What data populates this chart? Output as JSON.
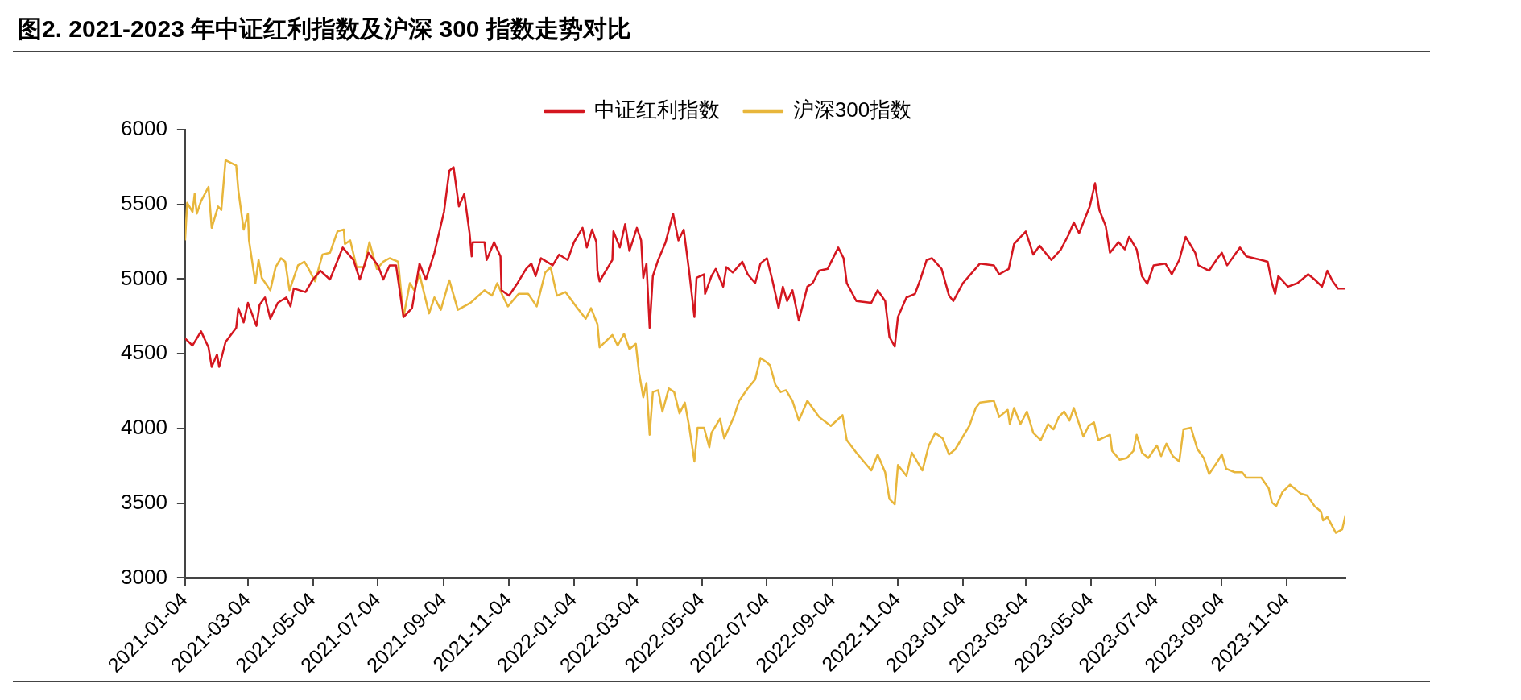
{
  "chart_data": {
    "type": "line",
    "title": "图2. 2021-2023 年中证红利指数及沪深 300 指数走势对比",
    "xlim": [
      "2021-01-04",
      "2023-12-29"
    ],
    "xticks": [
      "2021-01-04",
      "2021-03-04",
      "2021-05-04",
      "2021-07-04",
      "2021-09-04",
      "2021-11-04",
      "2022-01-04",
      "2022-03-04",
      "2022-05-04",
      "2022-07-04",
      "2022-09-04",
      "2022-11-04",
      "2023-01-04",
      "2023-03-04",
      "2023-05-04",
      "2023-07-04",
      "2023-09-04",
      "2023-11-04"
    ],
    "ylim": [
      3000,
      6000
    ],
    "yticks": [
      3000,
      3500,
      4000,
      4500,
      5000,
      5500,
      6000
    ],
    "grid": false,
    "legend": "top",
    "marker": "none",
    "line_style": "solid",
    "series": [
      {
        "name": "中证红利指数",
        "color": "#d4161f",
        "x": [
          "2021-01-04",
          "2021-01-11",
          "2021-01-19",
          "2021-01-26",
          "2021-01-29",
          "2021-02-03",
          "2021-02-05",
          "2021-02-11",
          "2021-02-21",
          "2021-02-23",
          "2021-02-28",
          "2021-03-04",
          "2021-03-12",
          "2021-03-15",
          "2021-03-20",
          "2021-03-25",
          "2021-04-01",
          "2021-04-09",
          "2021-04-13",
          "2021-04-16",
          "2021-04-27",
          "2021-05-04",
          "2021-05-11",
          "2021-05-20",
          "2021-06-01",
          "2021-06-11",
          "2021-06-17",
          "2021-06-25",
          "2021-07-04",
          "2021-07-09",
          "2021-07-15",
          "2021-07-21",
          "2021-07-28",
          "2021-08-05",
          "2021-08-12",
          "2021-08-18",
          "2021-08-26",
          "2021-09-04",
          "2021-09-09",
          "2021-09-13",
          "2021-09-18",
          "2021-09-23",
          "2021-09-28",
          "2021-09-30",
          "2021-10-01",
          "2021-10-12",
          "2021-10-14",
          "2021-10-21",
          "2021-10-27",
          "2021-10-28",
          "2021-11-04",
          "2021-11-12",
          "2021-11-20",
          "2021-11-25",
          "2021-11-29",
          "2021-12-04",
          "2021-12-15",
          "2021-12-21",
          "2021-12-29",
          "2022-01-04",
          "2022-01-12",
          "2022-01-16",
          "2022-01-21",
          "2022-01-25",
          "2022-01-26",
          "2022-01-28",
          "2022-02-09",
          "2022-02-10",
          "2022-02-16",
          "2022-02-21",
          "2022-02-25",
          "2022-03-04",
          "2022-03-08",
          "2022-03-10",
          "2022-03-13",
          "2022-03-16",
          "2022-03-19",
          "2022-03-24",
          "2022-03-31",
          "2022-04-07",
          "2022-04-12",
          "2022-04-17",
          "2022-04-22",
          "2022-04-27",
          "2022-04-29",
          "2022-05-06",
          "2022-05-07",
          "2022-05-13",
          "2022-05-17",
          "2022-05-24",
          "2022-05-27",
          "2022-06-02",
          "2022-06-11",
          "2022-06-16",
          "2022-06-23",
          "2022-06-28",
          "2022-07-04",
          "2022-07-09",
          "2022-07-15",
          "2022-07-19",
          "2022-07-23",
          "2022-07-28",
          "2022-08-03",
          "2022-08-11",
          "2022-08-16",
          "2022-08-22",
          "2022-08-30",
          "2022-09-09",
          "2022-09-14",
          "2022-09-17",
          "2022-09-26",
          "2022-10-10",
          "2022-10-16",
          "2022-10-23",
          "2022-10-27",
          "2022-11-01",
          "2022-11-04",
          "2022-11-12",
          "2022-11-20",
          "2022-11-25",
          "2022-12-01",
          "2022-12-06",
          "2022-12-15",
          "2022-12-22",
          "2022-12-26",
          "2023-01-04",
          "2023-01-20",
          "2023-02-02",
          "2023-02-07",
          "2023-02-16",
          "2023-02-21",
          "2023-03-04",
          "2023-03-11",
          "2023-03-17",
          "2023-03-28",
          "2023-04-06",
          "2023-04-13",
          "2023-04-18",
          "2023-04-23",
          "2023-05-03",
          "2023-05-08",
          "2023-05-12",
          "2023-05-18",
          "2023-05-22",
          "2023-05-30",
          "2023-06-05",
          "2023-06-09",
          "2023-06-16",
          "2023-06-21",
          "2023-06-26",
          "2023-07-02",
          "2023-07-13",
          "2023-07-19",
          "2023-07-26",
          "2023-08-01",
          "2023-08-10",
          "2023-08-13",
          "2023-08-23",
          "2023-08-31",
          "2023-09-04",
          "2023-09-09",
          "2023-09-21",
          "2023-09-27",
          "2023-10-11",
          "2023-10-17",
          "2023-10-21",
          "2023-10-24",
          "2023-10-27",
          "2023-11-05",
          "2023-11-14",
          "2023-11-24",
          "2023-11-30",
          "2023-12-07",
          "2023-12-12",
          "2023-12-17",
          "2023-12-22",
          "2023-12-29"
        ],
        "values": [
          4603,
          4555,
          4650,
          4543,
          4412,
          4495,
          4412,
          4579,
          4674,
          4805,
          4710,
          4841,
          4686,
          4829,
          4877,
          4734,
          4841,
          4877,
          4817,
          4937,
          4913,
          4997,
          5056,
          4997,
          5211,
          5128,
          4997,
          5176,
          5092,
          4997,
          5092,
          5092,
          4746,
          4805,
          5104,
          4997,
          5176,
          5450,
          5725,
          5749,
          5486,
          5570,
          5307,
          5152,
          5247,
          5247,
          5128,
          5247,
          5152,
          4925,
          4889,
          4973,
          5068,
          5104,
          5020,
          5140,
          5092,
          5164,
          5128,
          5247,
          5343,
          5211,
          5331,
          5247,
          5056,
          4985,
          5128,
          5319,
          5211,
          5367,
          5188,
          5343,
          5259,
          5008,
          5104,
          4674,
          5020,
          5128,
          5247,
          5438,
          5259,
          5331,
          5056,
          4746,
          5008,
          5032,
          4901,
          5020,
          5068,
          4949,
          5080,
          5044,
          5116,
          5032,
          4973,
          5104,
          5140,
          4997,
          4805,
          4949,
          4853,
          4925,
          4722,
          4949,
          4973,
          5056,
          5068,
          5211,
          5140,
          4973,
          4853,
          4841,
          4925,
          4853,
          4614,
          4548,
          4746,
          4877,
          4901,
          4997,
          5128,
          5140,
          5068,
          4889,
          4853,
          4973,
          5104,
          5092,
          5032,
          5068,
          5235,
          5319,
          5164,
          5223,
          5128,
          5199,
          5295,
          5379,
          5307,
          5486,
          5641,
          5462,
          5355,
          5176,
          5247,
          5199,
          5283,
          5199,
          5020,
          4968,
          5092,
          5104,
          5032,
          5128,
          5283,
          5176,
          5092,
          5056,
          5140,
          5176,
          5092,
          5211,
          5152,
          5128,
          5116,
          4973,
          4901,
          5020,
          4949,
          4973,
          5032,
          4997,
          4949,
          5056,
          4985,
          4937,
          4937
        ]
      },
      {
        "name": "沪深300指数",
        "color": "#e8b63b",
        "x": [
          "2021-01-04",
          "2021-01-06",
          "2021-01-11",
          "2021-01-13",
          "2021-01-15",
          "2021-01-19",
          "2021-01-26",
          "2021-01-29",
          "2021-02-04",
          "2021-02-07",
          "2021-02-11",
          "2021-02-21",
          "2021-02-23",
          "2021-02-28",
          "2021-03-04",
          "2021-03-05",
          "2021-03-11",
          "2021-03-14",
          "2021-03-17",
          "2021-03-25",
          "2021-03-30",
          "2021-04-04",
          "2021-04-08",
          "2021-04-12",
          "2021-04-20",
          "2021-04-26",
          "2021-04-30",
          "2021-05-06",
          "2021-05-13",
          "2021-05-20",
          "2021-05-27",
          "2021-06-02",
          "2021-06-03",
          "2021-06-08",
          "2021-06-14",
          "2021-06-21",
          "2021-06-26",
          "2021-07-03",
          "2021-07-09",
          "2021-07-15",
          "2021-07-23",
          "2021-07-28",
          "2021-08-03",
          "2021-08-07",
          "2021-08-12",
          "2021-08-21",
          "2021-08-26",
          "2021-09-01",
          "2021-09-09",
          "2021-09-17",
          "2021-09-29",
          "2021-10-12",
          "2021-10-19",
          "2021-10-24",
          "2021-10-29",
          "2021-11-03",
          "2021-11-13",
          "2021-11-22",
          "2021-11-30",
          "2021-12-08",
          "2021-12-13",
          "2021-12-19",
          "2021-12-27",
          "2022-01-06",
          "2022-01-15",
          "2022-01-20",
          "2022-01-26",
          "2022-01-28",
          "2022-02-09",
          "2022-02-14",
          "2022-02-20",
          "2022-02-25",
          "2022-03-03",
          "2022-03-06",
          "2022-03-10",
          "2022-03-13",
          "2022-03-16",
          "2022-03-19",
          "2022-03-24",
          "2022-03-28",
          "2022-04-03",
          "2022-04-08",
          "2022-04-13",
          "2022-04-18",
          "2022-04-22",
          "2022-04-27",
          "2022-04-30",
          "2022-05-06",
          "2022-05-11",
          "2022-05-13",
          "2022-05-21",
          "2022-05-25",
          "2022-06-03",
          "2022-06-08",
          "2022-06-16",
          "2022-06-23",
          "2022-06-28",
          "2022-07-03",
          "2022-07-07",
          "2022-07-12",
          "2022-07-17",
          "2022-07-22",
          "2022-07-28",
          "2022-08-03",
          "2022-08-11",
          "2022-08-22",
          "2022-09-02",
          "2022-09-13",
          "2022-09-17",
          "2022-09-26",
          "2022-10-10",
          "2022-10-16",
          "2022-10-23",
          "2022-10-27",
          "2022-11-01",
          "2022-11-04",
          "2022-11-12",
          "2022-11-17",
          "2022-11-27",
          "2022-12-03",
          "2022-12-09",
          "2022-12-16",
          "2022-12-22",
          "2022-12-28",
          "2023-01-04",
          "2023-01-10",
          "2023-01-16",
          "2023-01-20",
          "2023-02-02",
          "2023-02-07",
          "2023-02-15",
          "2023-02-17",
          "2023-02-21",
          "2023-02-27",
          "2023-03-05",
          "2023-03-11",
          "2023-03-18",
          "2023-03-25",
          "2023-03-30",
          "2023-04-04",
          "2023-04-09",
          "2023-04-14",
          "2023-04-18",
          "2023-04-27",
          "2023-05-02",
          "2023-05-07",
          "2023-05-11",
          "2023-05-22",
          "2023-05-24",
          "2023-05-31",
          "2023-06-07",
          "2023-06-13",
          "2023-06-16",
          "2023-06-21",
          "2023-06-27",
          "2023-07-05",
          "2023-07-09",
          "2023-07-14",
          "2023-07-20",
          "2023-07-26",
          "2023-07-30",
          "2023-08-06",
          "2023-08-12",
          "2023-08-18",
          "2023-08-23",
          "2023-08-31",
          "2023-09-04",
          "2023-09-08",
          "2023-09-16",
          "2023-09-23",
          "2023-09-27",
          "2023-10-11",
          "2023-10-18",
          "2023-10-21",
          "2023-10-25",
          "2023-10-31",
          "2023-11-07",
          "2023-11-17",
          "2023-11-23",
          "2023-11-30",
          "2023-12-06",
          "2023-12-08",
          "2023-12-12",
          "2023-12-20",
          "2023-12-26",
          "2023-12-29"
        ],
        "values": [
          5259,
          5510,
          5450,
          5570,
          5438,
          5522,
          5617,
          5343,
          5486,
          5462,
          5796,
          5761,
          5594,
          5331,
          5438,
          5259,
          4973,
          5128,
          5008,
          4925,
          5080,
          5140,
          5116,
          4925,
          5092,
          5116,
          5068,
          4985,
          5164,
          5176,
          5319,
          5331,
          5235,
          5259,
          5080,
          5080,
          5247,
          5068,
          5116,
          5140,
          5116,
          4746,
          4973,
          4925,
          5032,
          4770,
          4877,
          4794,
          4992,
          4794,
          4841,
          4925,
          4889,
          4973,
          4889,
          4817,
          4901,
          4901,
          4817,
          5044,
          5080,
          4889,
          4913,
          4817,
          4734,
          4805,
          4698,
          4543,
          4626,
          4555,
          4634,
          4531,
          4567,
          4376,
          4209,
          4304,
          3958,
          4244,
          4256,
          4113,
          4268,
          4244,
          4101,
          4173,
          4017,
          3779,
          4005,
          4005,
          3874,
          3970,
          4065,
          3934,
          4077,
          4185,
          4268,
          4328,
          4471,
          4447,
          4423,
          4292,
          4244,
          4256,
          4185,
          4053,
          4185,
          4077,
          4017,
          4089,
          3922,
          3838,
          3719,
          3826,
          3707,
          3528,
          3492,
          3755,
          3683,
          3838,
          3719,
          3886,
          3970,
          3934,
          3826,
          3862,
          3946,
          4017,
          4137,
          4173,
          4185,
          4077,
          4125,
          4029,
          4137,
          4029,
          4113,
          3970,
          3922,
          4029,
          3994,
          4077,
          4113,
          4053,
          4137,
          3946,
          4017,
          4041,
          3922,
          3958,
          3850,
          3791,
          3803,
          3850,
          3958,
          3838,
          3803,
          3886,
          3815,
          3898,
          3815,
          3779,
          3994,
          4005,
          3862,
          3803,
          3695,
          3779,
          3826,
          3731,
          3707,
          3707,
          3671,
          3671,
          3599,
          3504,
          3480,
          3576,
          3624,
          3564,
          3552,
          3480,
          3444,
          3385,
          3408,
          3301,
          3325,
          3420
        ]
      }
    ]
  }
}
